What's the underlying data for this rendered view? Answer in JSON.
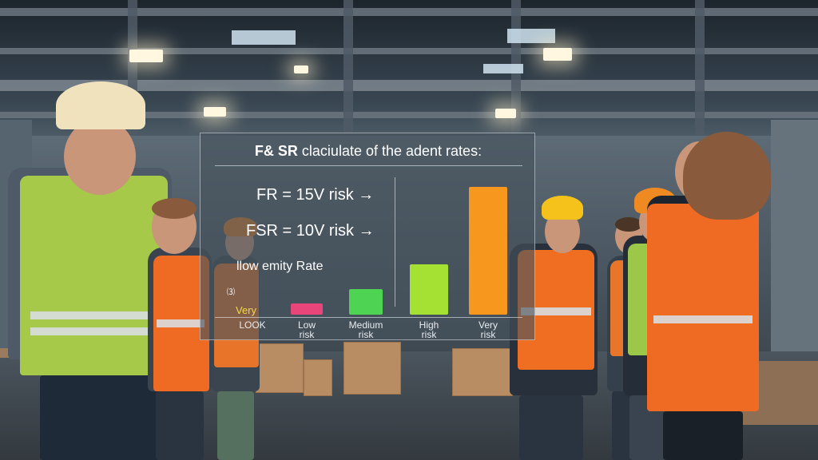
{
  "overlay": {
    "title_bold": "F& SR",
    "title_rest": " claciulate of the adent rates:",
    "formula_1": "FR = 15V risk →",
    "formula_2": "FSR = 10V risk →",
    "severity_label": "llow emity Rate",
    "small_marker": "⑶",
    "very_label": "Very"
  },
  "chart_data": {
    "type": "bar",
    "categories": [
      "LOOK",
      "Low risk",
      "Medium risk",
      "High risk",
      "Very risk"
    ],
    "category_lines": [
      [
        "LOOK"
      ],
      [
        "Low",
        "risk"
      ],
      [
        "Medium",
        "risk"
      ],
      [
        "High",
        "risk"
      ],
      [
        "Very",
        "risk"
      ]
    ],
    "values": [
      0,
      1,
      2.3,
      4.5,
      11.5
    ],
    "colors": [
      "#000000",
      "#e8457a",
      "#4ed352",
      "#a4e132",
      "#f7971d"
    ]
  }
}
